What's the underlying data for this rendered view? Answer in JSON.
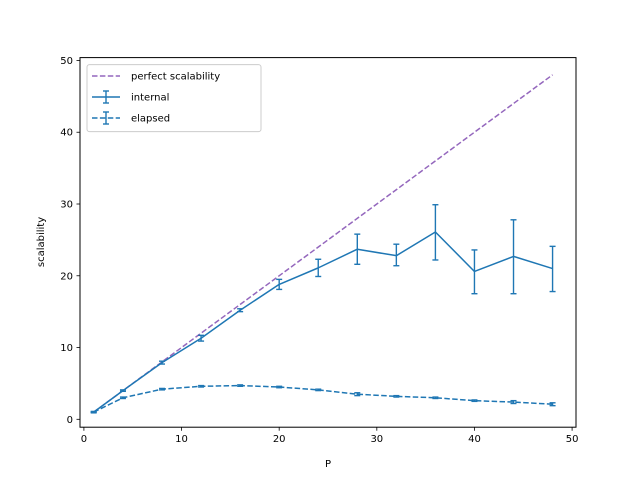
{
  "chart_data": {
    "type": "line",
    "xlabel": "P",
    "ylabel": "scalability",
    "xlim": [
      -0.4,
      50.4
    ],
    "ylim": [
      -1.1,
      50.4
    ],
    "xticks": [
      0,
      10,
      20,
      30,
      40,
      50
    ],
    "yticks": [
      0,
      10,
      20,
      30,
      40,
      50
    ],
    "grid": false,
    "legend_position": "top-left",
    "series": [
      {
        "name": "perfect scalability",
        "style": "dashed",
        "color": "#9467bd",
        "error_bars": false,
        "x": [
          1,
          48
        ],
        "y": [
          1,
          48
        ]
      },
      {
        "name": "internal",
        "style": "solid",
        "color": "#1f77b4",
        "error_bars": true,
        "x": [
          1,
          4,
          8,
          12,
          16,
          20,
          24,
          28,
          32,
          36,
          40,
          44,
          48
        ],
        "y": [
          1.0,
          4.0,
          7.9,
          11.3,
          15.2,
          18.8,
          21.1,
          23.7,
          22.8,
          26.1,
          20.6,
          22.7,
          21.0
        ],
        "err_low": [
          0.0,
          0.1,
          0.2,
          0.4,
          0.2,
          0.7,
          1.2,
          2.1,
          1.4,
          3.9,
          3.1,
          5.2,
          3.2
        ],
        "err_high": [
          0.0,
          0.1,
          0.2,
          0.4,
          0.2,
          0.7,
          1.2,
          2.1,
          1.6,
          3.8,
          3.0,
          5.1,
          3.1
        ]
      },
      {
        "name": "elapsed",
        "style": "dashed",
        "color": "#1f77b4",
        "error_bars": true,
        "x": [
          1,
          4,
          8,
          12,
          16,
          20,
          24,
          28,
          32,
          36,
          40,
          44,
          48
        ],
        "y": [
          1.0,
          3.0,
          4.2,
          4.6,
          4.7,
          4.5,
          4.1,
          3.5,
          3.2,
          3.0,
          2.6,
          2.4,
          2.1
        ],
        "err_low": [
          0.1,
          0.1,
          0.1,
          0.1,
          0.1,
          0.1,
          0.1,
          0.2,
          0.1,
          0.1,
          0.1,
          0.2,
          0.2
        ],
        "err_high": [
          0.1,
          0.1,
          0.1,
          0.1,
          0.1,
          0.1,
          0.1,
          0.2,
          0.1,
          0.1,
          0.1,
          0.2,
          0.2
        ]
      }
    ]
  }
}
